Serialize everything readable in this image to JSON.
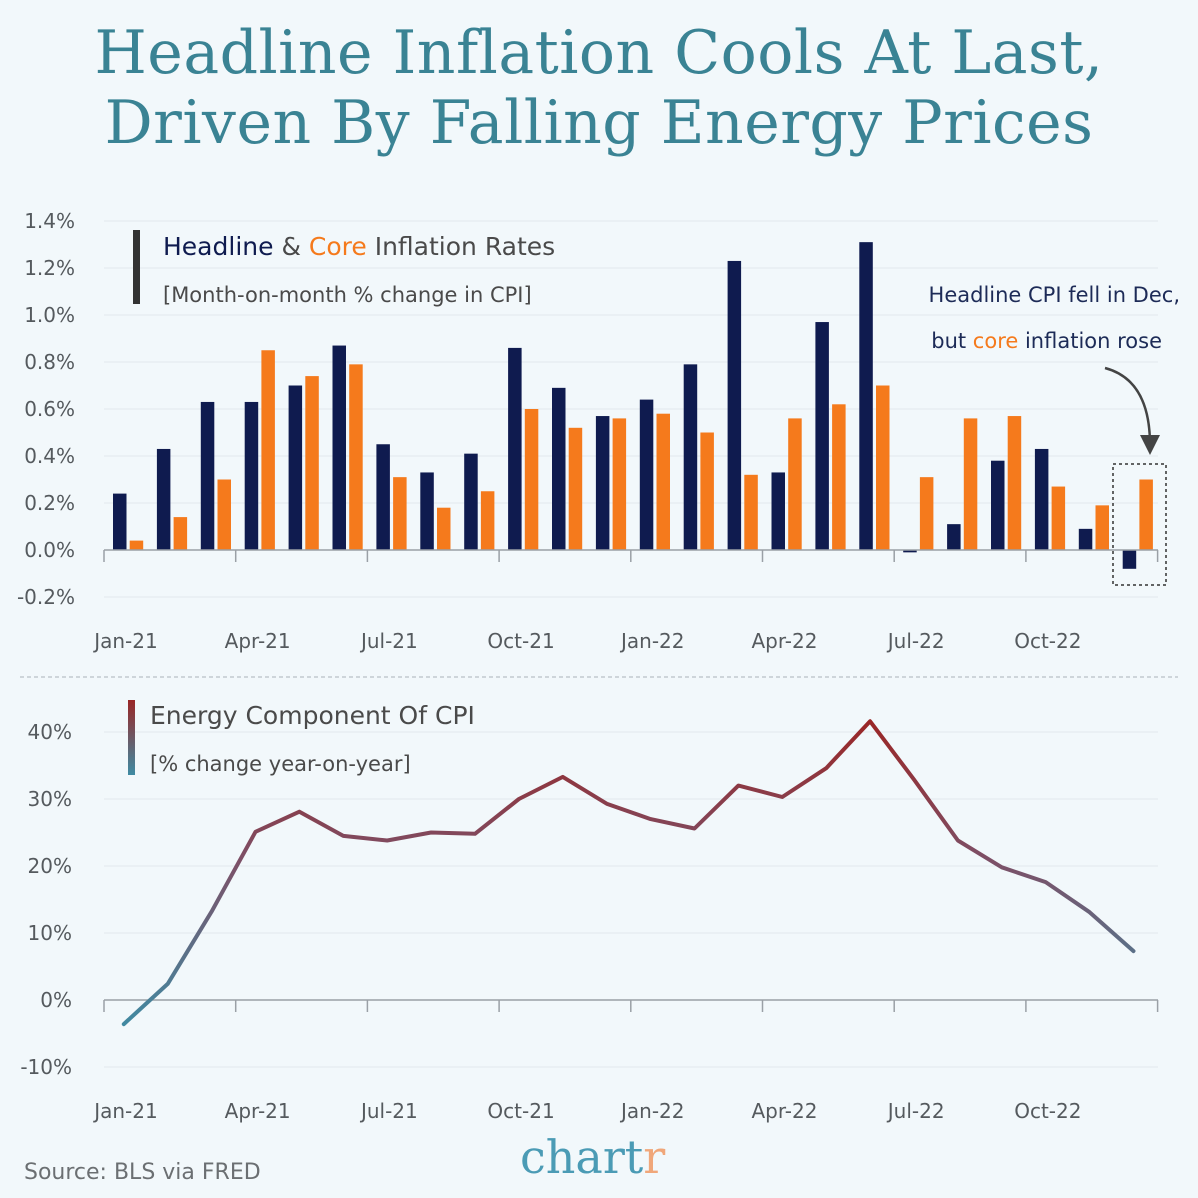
{
  "title": {
    "line1": "Headline Inflation Cools At Last,",
    "line2": "Driven By Falling Energy Prices"
  },
  "colors": {
    "headline": "#0f1b4f",
    "core": "#f57a1c",
    "energy_high": "#9a2626",
    "energy_low": "#3f8ba3",
    "title": "#3a8394",
    "axis": "#9aa0a6"
  },
  "chart_data": [
    {
      "type": "bar",
      "legend": {
        "parts": [
          {
            "text": "Headline",
            "color": "#0f1b4f"
          },
          {
            "text": " & ",
            "color": "#4a4a4a"
          },
          {
            "text": "Core",
            "color": "#f57a1c"
          },
          {
            "text": " Inflation Rates",
            "color": "#4a4a4a"
          }
        ],
        "subtitle": "[Month-on-month % change in CPI]"
      },
      "categories": [
        "Jan-21",
        "Feb-21",
        "Mar-21",
        "Apr-21",
        "May-21",
        "Jun-21",
        "Jul-21",
        "Aug-21",
        "Sep-21",
        "Oct-21",
        "Nov-21",
        "Dec-21",
        "Jan-22",
        "Feb-22",
        "Mar-22",
        "Apr-22",
        "May-22",
        "Jun-22",
        "Jul-22",
        "Aug-22",
        "Sep-22",
        "Oct-22",
        "Nov-22",
        "Dec-22"
      ],
      "series": [
        {
          "name": "Headline",
          "color": "#0f1b4f",
          "values": [
            0.24,
            0.43,
            0.63,
            0.63,
            0.7,
            0.87,
            0.45,
            0.33,
            0.41,
            0.86,
            0.69,
            0.57,
            0.64,
            0.79,
            1.23,
            0.33,
            0.97,
            1.31,
            -0.01,
            0.11,
            0.38,
            0.43,
            0.09,
            -0.08
          ]
        },
        {
          "name": "Core",
          "color": "#f57a1c",
          "values": [
            0.04,
            0.14,
            0.3,
            0.85,
            0.74,
            0.79,
            0.31,
            0.18,
            0.25,
            0.6,
            0.52,
            0.56,
            0.58,
            0.5,
            0.32,
            0.56,
            0.62,
            0.7,
            0.31,
            0.56,
            0.57,
            0.27,
            0.19,
            0.3
          ]
        }
      ],
      "ylim": [
        -0.2,
        1.4
      ],
      "y_ticks": [
        {
          "value": 1.4,
          "label": "1.4%"
        },
        {
          "value": 1.2,
          "label": "1.2%"
        },
        {
          "value": 1.0,
          "label": "1.0%"
        },
        {
          "value": 0.8,
          "label": "0.8%"
        },
        {
          "value": 0.6,
          "label": "0.6%"
        },
        {
          "value": 0.4,
          "label": "0.4%"
        },
        {
          "value": 0.2,
          "label": "0.2%"
        },
        {
          "value": 0.0,
          "label": "0.0%"
        },
        {
          "value": -0.2,
          "label": "-0.2%"
        }
      ],
      "x_tick_labels": [
        "Jan-21",
        "Apr-21",
        "Jul-21",
        "Oct-21",
        "Jan-22",
        "Apr-22",
        "Jul-22",
        "Oct-22"
      ],
      "annotation": {
        "line1": "Headline CPI fell in Dec,",
        "line2_parts": [
          {
            "text": "but ",
            "color": "#1d2b57"
          },
          {
            "text": "core",
            "color": "#f57a1c"
          },
          {
            "text": " inflation rose",
            "color": "#1d2b57"
          }
        ],
        "target": "Dec-22"
      }
    },
    {
      "type": "line",
      "legend": {
        "title": "Energy Component Of CPI",
        "subtitle": "[% change year-on-year]"
      },
      "x": [
        "Jan-21",
        "Feb-21",
        "Mar-21",
        "Apr-21",
        "May-21",
        "Jun-21",
        "Jul-21",
        "Aug-21",
        "Sep-21",
        "Oct-21",
        "Nov-21",
        "Dec-21",
        "Jan-22",
        "Feb-22",
        "Mar-22",
        "Apr-22",
        "May-22",
        "Jun-22",
        "Jul-22",
        "Aug-22",
        "Sep-22",
        "Oct-22",
        "Nov-22",
        "Dec-22"
      ],
      "series": [
        {
          "values": [
            -3.6,
            2.4,
            13.2,
            25.1,
            28.1,
            24.5,
            23.8,
            25.0,
            24.8,
            30.0,
            33.3,
            29.3,
            27.0,
            25.6,
            32.0,
            30.3,
            34.6,
            41.6,
            32.9,
            23.8,
            19.8,
            17.6,
            13.1,
            7.3
          ]
        }
      ],
      "ylim": [
        -10,
        45
      ],
      "y_ticks": [
        {
          "value": 40,
          "label": "40%"
        },
        {
          "value": 30,
          "label": "30%"
        },
        {
          "value": 20,
          "label": "20%"
        },
        {
          "value": 10,
          "label": "10%"
        },
        {
          "value": 0,
          "label": "0%"
        },
        {
          "value": -10,
          "label": "-10%"
        }
      ],
      "x_tick_labels": [
        "Jan-21",
        "Apr-21",
        "Jul-21",
        "Oct-21",
        "Jan-22",
        "Apr-22",
        "Jul-22",
        "Oct-22"
      ]
    }
  ],
  "footer": {
    "source": "Source: BLS via FRED",
    "brand_main": "chart",
    "brand_accent": "r"
  }
}
